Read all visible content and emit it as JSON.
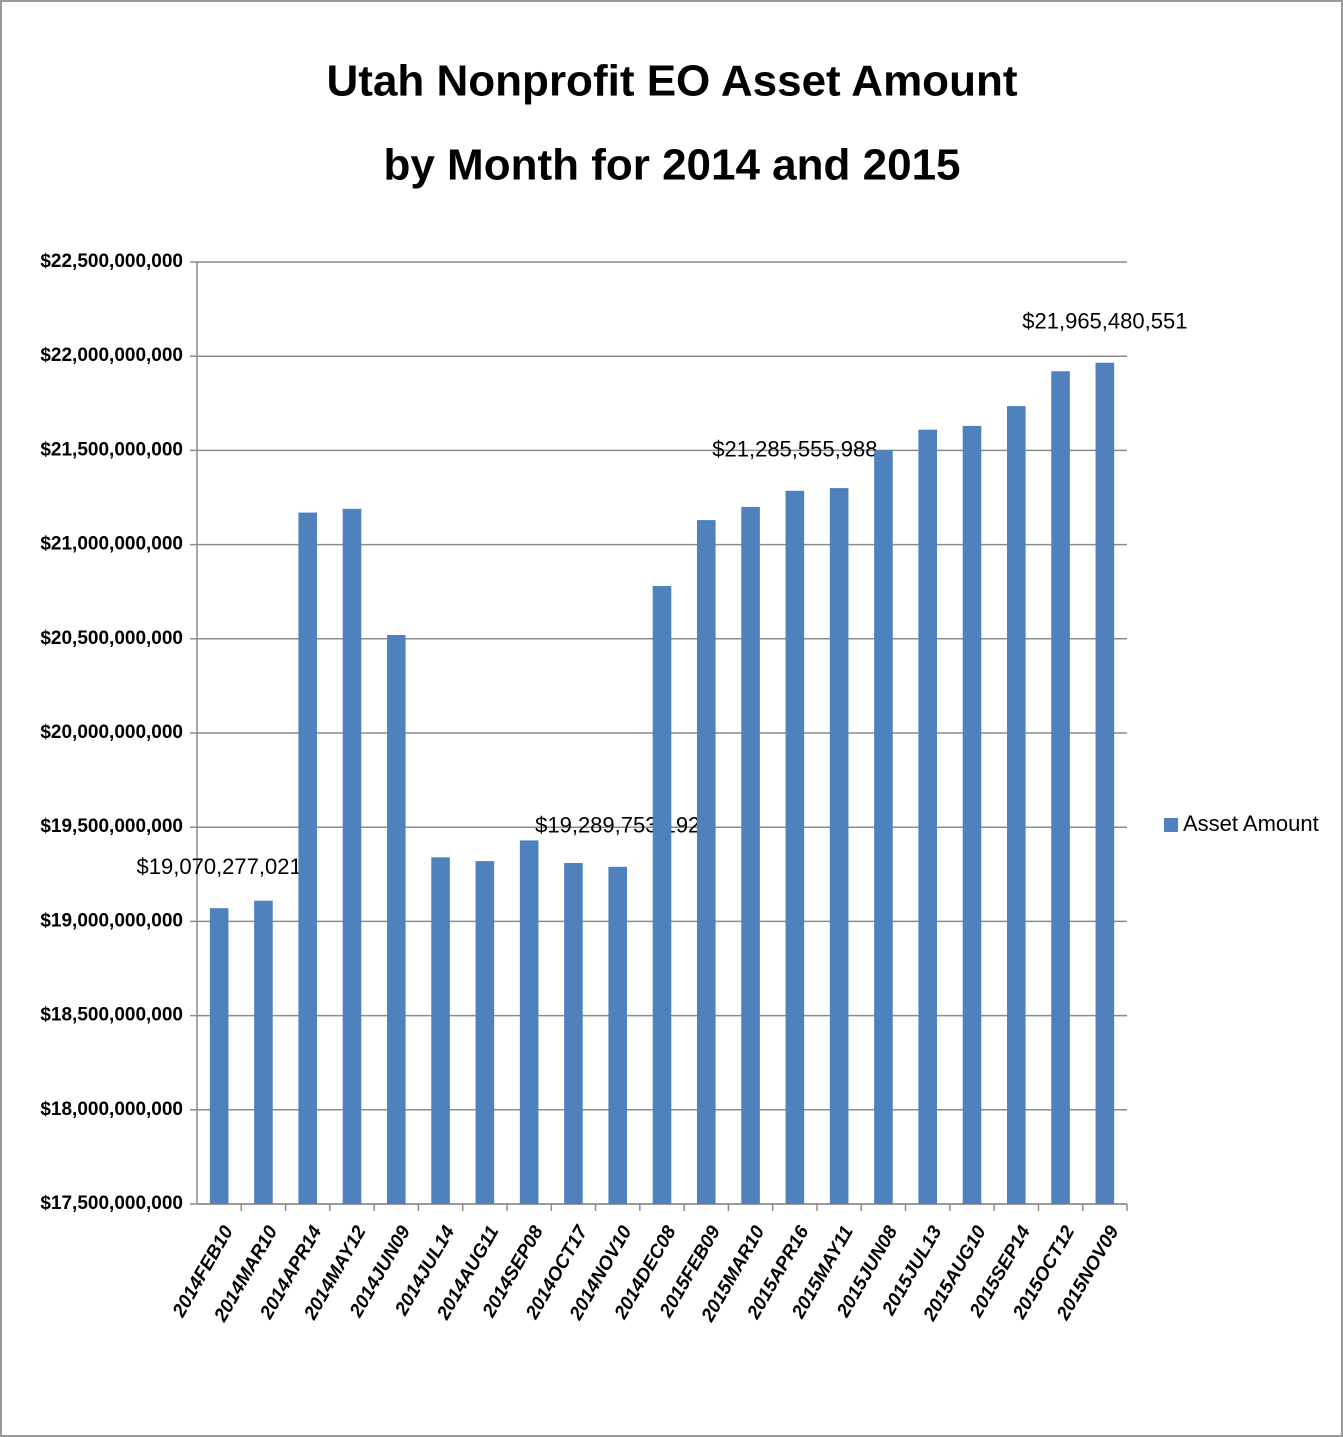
{
  "chart_data": {
    "type": "bar",
    "title": "Utah Nonprofit EO Asset Amount",
    "subtitle": "by Month for 2014 and 2015",
    "categories": [
      "2014FEB10",
      "2014MAR10",
      "2014APR14",
      "2014MAY12",
      "2014JUN09",
      "2014JUL14",
      "2014AUG11",
      "2014SEP08",
      "2014OCT17",
      "2014NOV10",
      "2014DEC08",
      "2015FEB09",
      "2015MAR10",
      "2015APR16",
      "2015MAY11",
      "2015JUN08",
      "2015JUL13",
      "2015AUG10",
      "2015SEP14",
      "2015OCT12",
      "2015NOV09"
    ],
    "series": [
      {
        "name": "Asset Amount",
        "color": "#4f81bd",
        "values": [
          19070277021,
          19110000000,
          21170000000,
          21190000000,
          20520000000,
          19340000000,
          19320000000,
          19430000000,
          19310000000,
          19289753192,
          20780000000,
          21130000000,
          21200000000,
          21285555988,
          21300000000,
          21500000000,
          21610000000,
          21630000000,
          21735000000,
          21920000000,
          21965480551
        ],
        "value_labels": [
          "$19,070,277,021",
          null,
          null,
          null,
          null,
          null,
          null,
          null,
          null,
          "$19,289,753,192",
          null,
          null,
          null,
          "$21,285,555,988",
          null,
          null,
          null,
          null,
          null,
          null,
          "$21,965,480,551"
        ]
      }
    ],
    "ylim": [
      17500000000,
      22500000000
    ],
    "yticks": [
      {
        "value": 17500000000,
        "label": "$17,500,000,000"
      },
      {
        "value": 18000000000,
        "label": "$18,000,000,000"
      },
      {
        "value": 18500000000,
        "label": "$18,500,000,000"
      },
      {
        "value": 19000000000,
        "label": "$19,000,000,000"
      },
      {
        "value": 19500000000,
        "label": "$19,500,000,000"
      },
      {
        "value": 20000000000,
        "label": "$20,000,000,000"
      },
      {
        "value": 20500000000,
        "label": "$20,500,000,000"
      },
      {
        "value": 21000000000,
        "label": "$21,000,000,000"
      },
      {
        "value": 21500000000,
        "label": "$21,500,000,000"
      },
      {
        "value": 22000000000,
        "label": "$22,000,000,000"
      },
      {
        "value": 22500000000,
        "label": "$22,500,000,000"
      }
    ],
    "grid": true,
    "legend": "right"
  }
}
